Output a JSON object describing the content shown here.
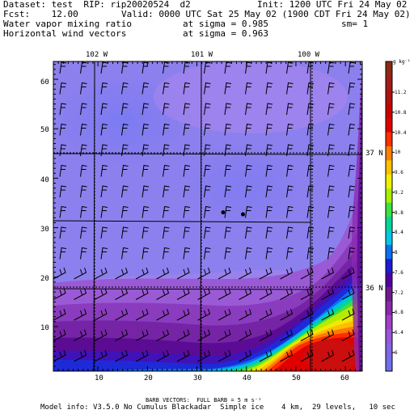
{
  "header": {
    "dataset": "Dataset: test  RIP: rip20020524  d2",
    "init": "Init: 1200 UTC Fri 24 May 02",
    "fcst": "Fcst:    12.00",
    "valid": "Valid: 0000 UTC Sat 25 May 02 (1900 CDT Fri 24 May 02)",
    "field1": "Water vapor mixing ratio",
    "field1_level": "at sigma = 0.985",
    "sm": "sm= 1",
    "field2": "Horizontal wind vectors",
    "field2_level": "at sigma = 0.963"
  },
  "map": {
    "lon_labels": [
      "102 W",
      "101 W",
      "100 W"
    ],
    "lat_labels": [
      "37 N",
      "36 N"
    ],
    "y_ticks": [
      "60",
      "50",
      "40",
      "30",
      "20",
      "10"
    ],
    "x_ticks": [
      "10",
      "20",
      "30",
      "40",
      "50",
      "60"
    ],
    "markers": [
      {
        "x": 35.3,
        "y": 33.1
      },
      {
        "x": 39.3,
        "y": 32.7
      }
    ]
  },
  "colorbar": {
    "unit_label": "g kg⁻¹",
    "labels": [
      "11.2",
      "10.8",
      "10.4",
      "10",
      "9.6",
      "9.2",
      "8.8",
      "8.4",
      "8",
      "7.6",
      "7.2",
      "6.8",
      "6.4",
      "6"
    ],
    "colors": [
      "#6f6fef",
      "#8066e6",
      "#9a55dd",
      "#a13fc8",
      "#8a2aa8",
      "#6d1a8c",
      "#5200a0",
      "#1c1cd6",
      "#0a70f0",
      "#00c8e8",
      "#00d89a",
      "#40e040",
      "#a8f000",
      "#f0f000",
      "#ffc000",
      "#ff8000",
      "#ff3000",
      "#e00000",
      "#c80000",
      "#b01010",
      "#a01c1c",
      "#8c2a12"
    ]
  },
  "footer": {
    "barb_label": "BARB VECTORS:  FULL BARB = 5 m s⁻¹",
    "model_info": "Model info: V3.5.0 No Cumulus Blackadar  Simple ice    4 km,  29 levels,   10 sec"
  }
}
